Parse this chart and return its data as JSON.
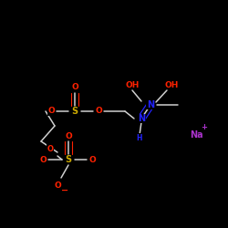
{
  "background_color": "#000000",
  "bond_color": "#d0d0d0",
  "atom_colors": {
    "O": "#ff2200",
    "S": "#ccaa00",
    "N": "#2222ff",
    "Na": "#aa33cc",
    "H": "#d0d0d0",
    "C": "#d0d0d0"
  },
  "figsize": [
    2.5,
    2.5
  ],
  "dpi": 100
}
